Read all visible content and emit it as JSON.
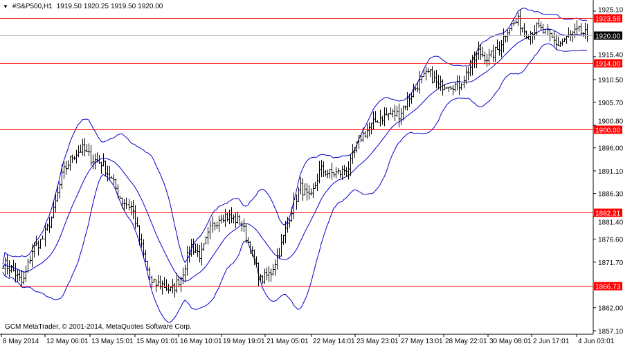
{
  "header": {
    "symbol": "#S&P500,H1",
    "open": "1919.50",
    "high": "1920.25",
    "low": "1919.50",
    "close": "1920.00",
    "menu_icon": "triangle-down-icon"
  },
  "copyright": "GCM MetaTrader, © 2001-2014, MetaQuotes Software Corp.",
  "colors": {
    "levels": "#ff0000",
    "bands": "#0000cc",
    "bars": "#000000",
    "current_price_bg": "#000000",
    "level_label_bg": "#ff0000"
  },
  "chart_data": {
    "type": "bar",
    "timeframe": "H1",
    "indicator": "Bollinger Bands",
    "ylim": [
      1857.1,
      1925.1
    ],
    "y_ticks": [
      "1925.10",
      "1915.40",
      "1910.50",
      "1905.70",
      "1900.80",
      "1896.00",
      "1891.10",
      "1886.30",
      "1881.40",
      "1876.60",
      "1871.70",
      "1862.00",
      "1857.10"
    ],
    "x_ticks": [
      "8 May 2014",
      "12 May 06:01",
      "13 May 15:01",
      "15 May 01:01",
      "16 May 10:01",
      "19 May 19:01",
      "21 May 05:01",
      "22 May 14:01",
      "23 May 23:01",
      "27 May 13:01",
      "28 May 22:01",
      "30 May 08:01",
      "2 Jun 17:01",
      "4 Jun 03:01"
    ],
    "current_price": "1920.00",
    "levels": [
      "1923.58",
      "1914.00",
      "1900.00",
      "1882.21",
      "1866.73"
    ],
    "approx_closes": [
      1871.5,
      1870,
      1867,
      1874.5,
      1876.6,
      1881.8,
      1890.6,
      1894.3,
      1895.8,
      1893.6,
      1892.8,
      1889.2,
      1884.8,
      1883.3,
      1874.4,
      1867,
      1867,
      1865.6,
      1868.5,
      1875.2,
      1873,
      1878.9,
      1881.8,
      1881.1,
      1880.3,
      1874.4,
      1867.8,
      1869.3,
      1874.4,
      1881.8,
      1887.7,
      1884.8,
      1891.4,
      1890.6,
      1890.6,
      1892.1,
      1898,
      1900.2,
      1902.4,
      1903.2,
      1903.2,
      1906.8,
      1909.8,
      1912,
      1909.1,
      1909.8,
      1909.1,
      1912.7,
      1916.4,
      1915,
      1917.1,
      1921.6,
      1923,
      1920.1,
      1921.6,
      1920.1,
      1917.9,
      1919.4,
      1920.8,
      1920
    ]
  }
}
